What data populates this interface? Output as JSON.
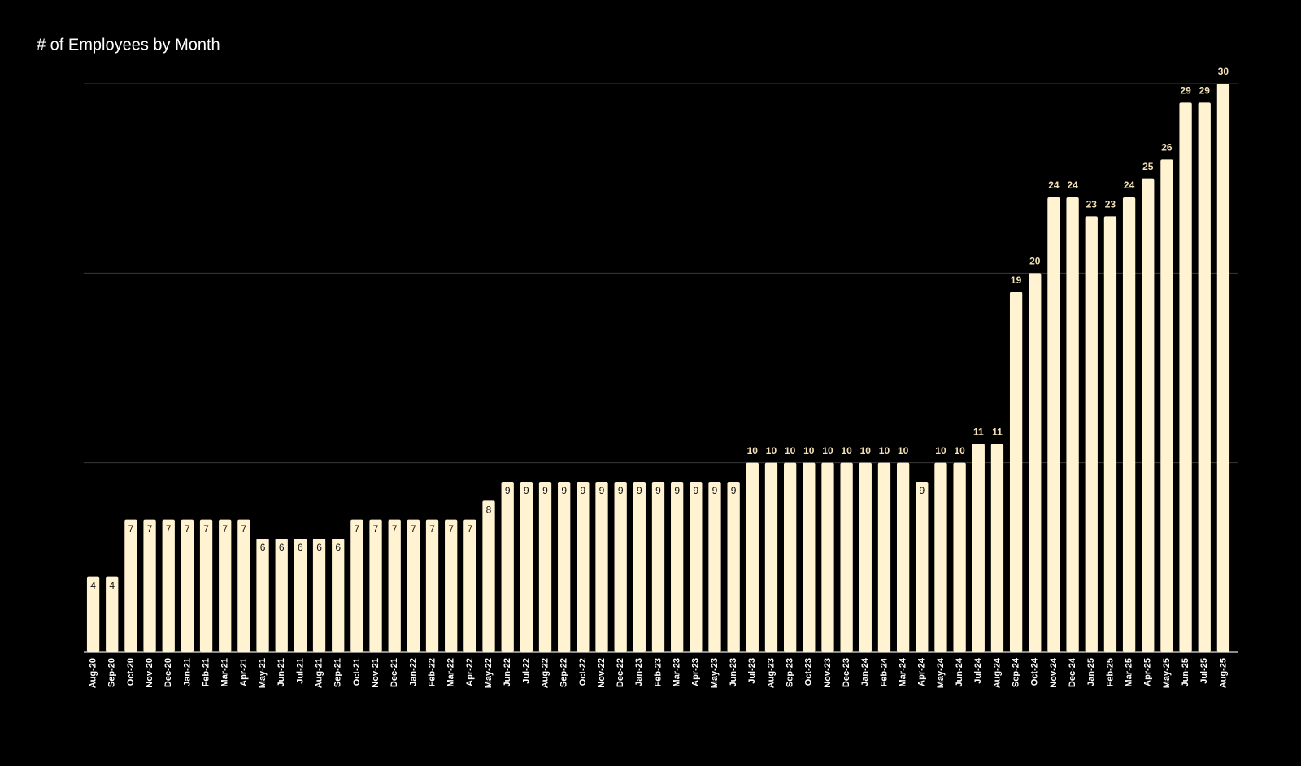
{
  "chart_data": {
    "type": "bar",
    "title": "# of Employees by Month",
    "categories": [
      "Aug-20",
      "Sep-20",
      "Oct-20",
      "Nov-20",
      "Dec-20",
      "Jan-21",
      "Feb-21",
      "Mar-21",
      "Apr-21",
      "May-21",
      "Jun-21",
      "Jul-21",
      "Aug-21",
      "Sep-21",
      "Oct-21",
      "Nov-21",
      "Dec-21",
      "Jan-22",
      "Feb-22",
      "Mar-22",
      "Apr-22",
      "May-22",
      "Jun-22",
      "Jul-22",
      "Aug-22",
      "Sep-22",
      "Oct-22",
      "Nov-22",
      "Dec-22",
      "Jan-23",
      "Feb-23",
      "Mar-23",
      "Apr-23",
      "May-23",
      "Jun-23",
      "Jul-23",
      "Aug-23",
      "Sep-23",
      "Oct-23",
      "Nov-23",
      "Dec-23",
      "Jan-24",
      "Feb-24",
      "Mar-24",
      "Apr-24",
      "May-24",
      "Jun-24",
      "Jul-24",
      "Aug-24",
      "Sep-24",
      "Oct-24",
      "Nov-24",
      "Dec-24",
      "Jan-25",
      "Feb-25",
      "Mar-25",
      "Apr-25",
      "May-25",
      "Jun-25",
      "Jul-25",
      "Aug-25"
    ],
    "values": [
      4,
      4,
      7,
      7,
      7,
      7,
      7,
      7,
      7,
      6,
      6,
      6,
      6,
      6,
      7,
      7,
      7,
      7,
      7,
      7,
      7,
      8,
      9,
      9,
      9,
      9,
      9,
      9,
      9,
      9,
      9,
      9,
      9,
      9,
      9,
      10,
      10,
      10,
      10,
      10,
      10,
      10,
      10,
      10,
      9,
      10,
      10,
      11,
      11,
      19,
      20,
      24,
      24,
      23,
      23,
      24,
      25,
      26,
      29,
      29,
      30
    ],
    "color": "#fff3d2",
    "ylim": [
      0,
      30
    ],
    "yticks": [
      0,
      10,
      20,
      30
    ],
    "show_ytick_labels": false,
    "grid": true
  }
}
